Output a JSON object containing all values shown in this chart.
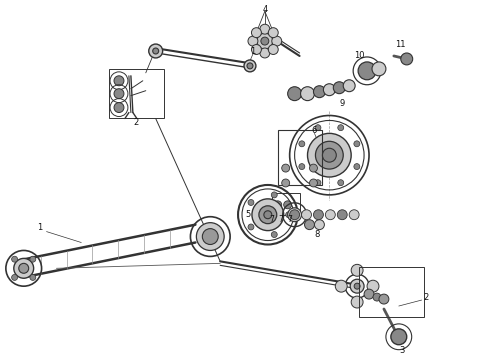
{
  "bg_color": "#ffffff",
  "line_color": "#333333",
  "label_color": "#111111",
  "gray_fill": "#888888",
  "light_gray": "#cccccc",
  "mid_gray": "#999999",
  "dark_gray": "#555555",
  "fig_width": 4.9,
  "fig_height": 3.6,
  "dpi": 100
}
